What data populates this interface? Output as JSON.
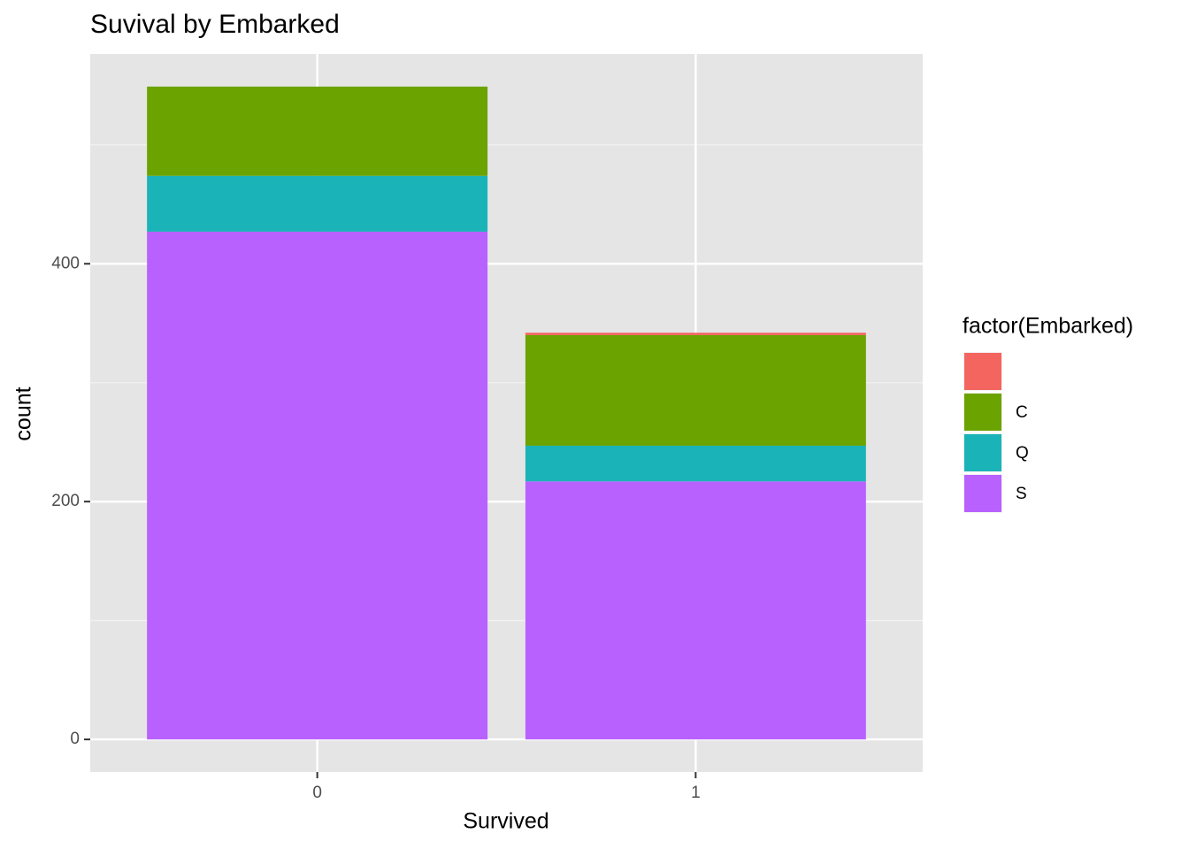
{
  "chart_data": {
    "type": "stacked_bar",
    "title": "Suvival by Embarked",
    "x_label": "Survived",
    "y_label": "count",
    "legend_title": "factor(Embarked)",
    "categories": [
      "0",
      "1"
    ],
    "series": [
      {
        "name": null,
        "color": "#F4655F",
        "values": [
          0,
          2
        ]
      },
      {
        "name": "C",
        "color": "#6BA300",
        "values": [
          75,
          93
        ]
      },
      {
        "name": "Q",
        "color": "#1AB3B8",
        "values": [
          47,
          30
        ]
      },
      {
        "name": "S",
        "color": "#B861FF",
        "values": [
          427,
          217
        ]
      }
    ],
    "ylim": [
      -27.45,
      576.45
    ],
    "yticks": [
      0,
      200,
      400
    ],
    "yminor": [
      100,
      300,
      500
    ],
    "grid": true,
    "legend": "right"
  }
}
